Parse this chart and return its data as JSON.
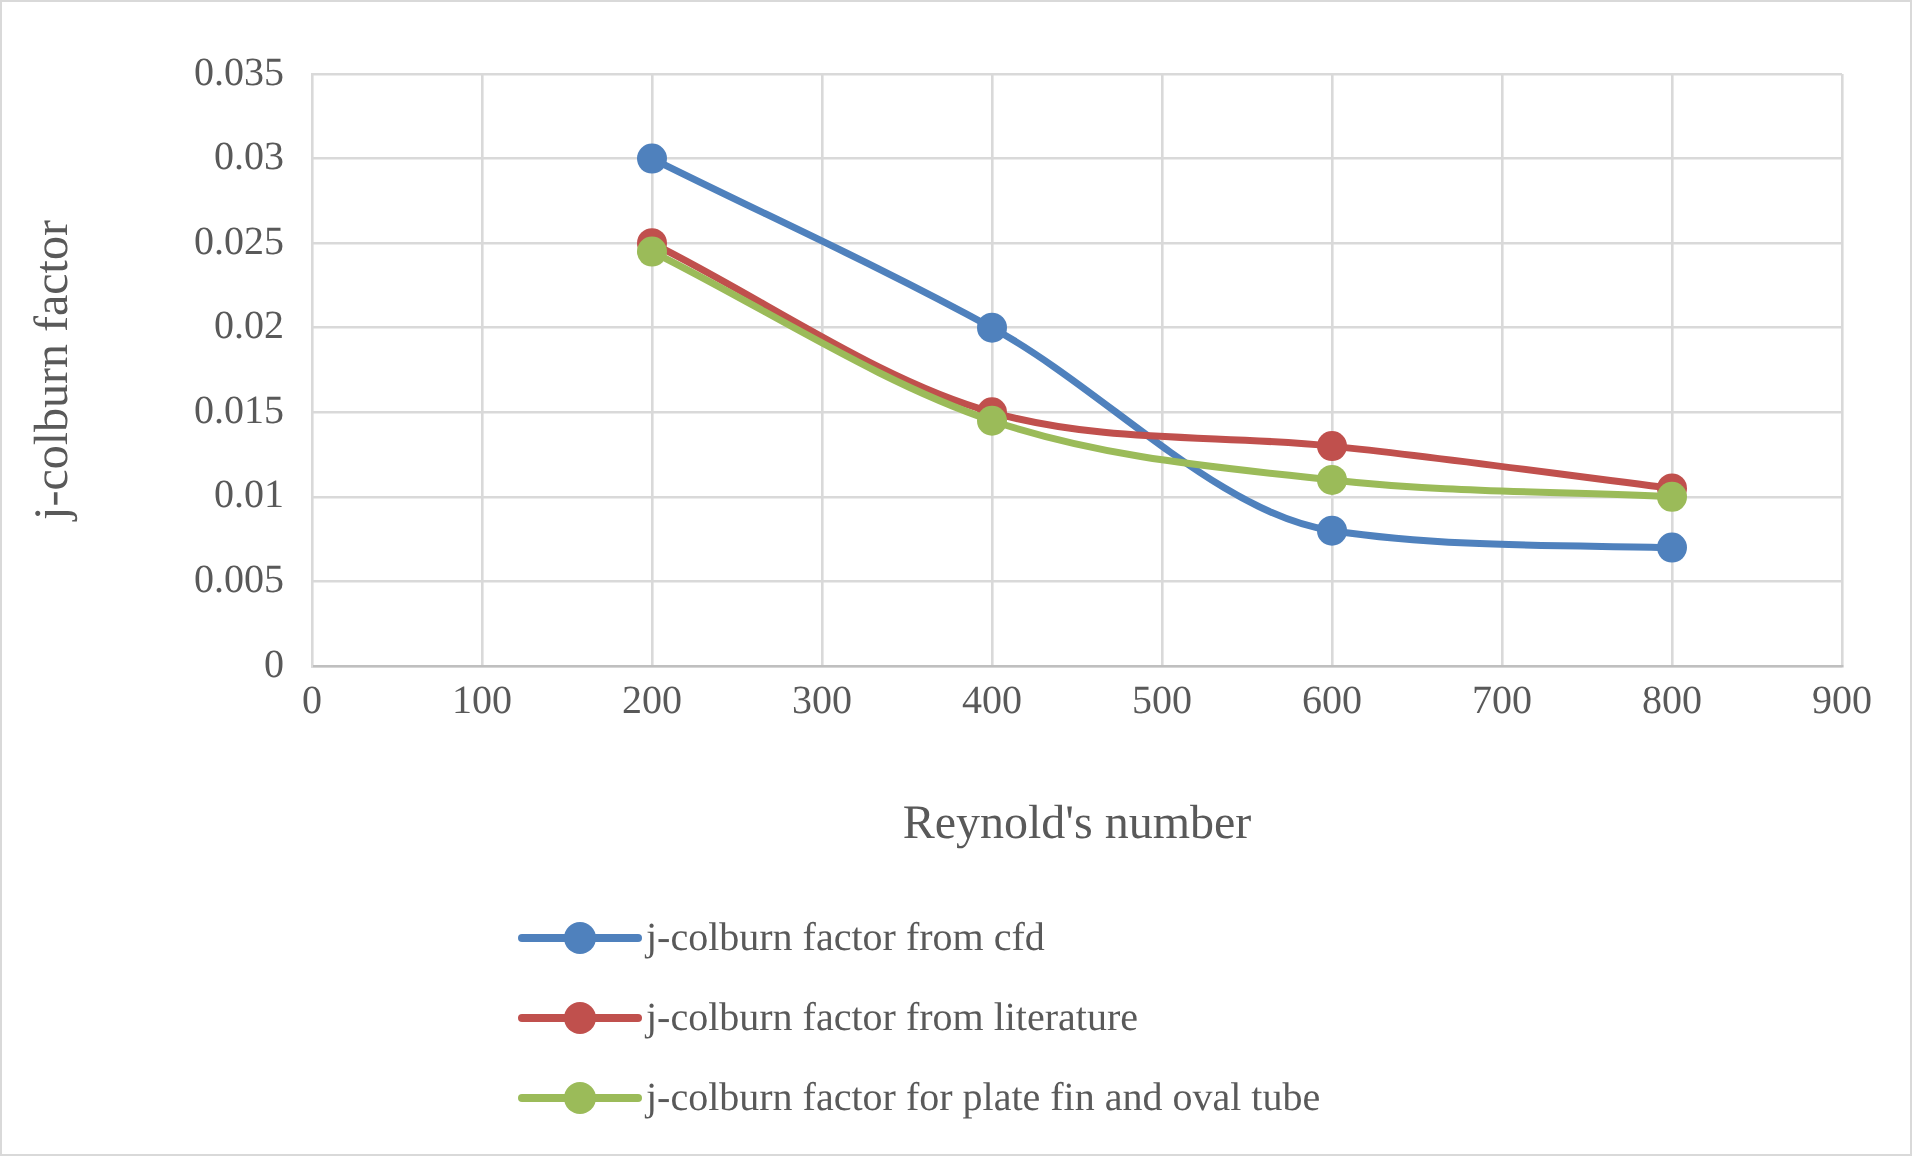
{
  "chart_data": {
    "type": "line",
    "xlabel": "Reynold's number",
    "ylabel": "j-colburn factor",
    "x": [
      200,
      400,
      600,
      800
    ],
    "xlim": [
      0,
      900
    ],
    "xticks": [
      0,
      100,
      200,
      300,
      400,
      500,
      600,
      700,
      800,
      900
    ],
    "ylim": [
      0,
      0.035
    ],
    "yticks": [
      0,
      0.005,
      0.01,
      0.015,
      0.02,
      0.025,
      0.03,
      0.035
    ],
    "grid": true,
    "legend": "bottom",
    "marker": "circle",
    "line_style": "solid",
    "series": [
      {
        "name": "j-colburn factor from cfd",
        "color": "#4f81bd",
        "values": [
          0.03,
          0.02,
          0.008,
          0.007
        ]
      },
      {
        "name": "j-colburn factor from literature",
        "color": "#c0504d",
        "values": [
          0.025,
          0.015,
          0.013,
          0.0105
        ]
      },
      {
        "name": "j-colburn factor for plate fin and oval tube",
        "color": "#9bbb59",
        "values": [
          0.0245,
          0.0145,
          0.011,
          0.01
        ]
      }
    ]
  }
}
